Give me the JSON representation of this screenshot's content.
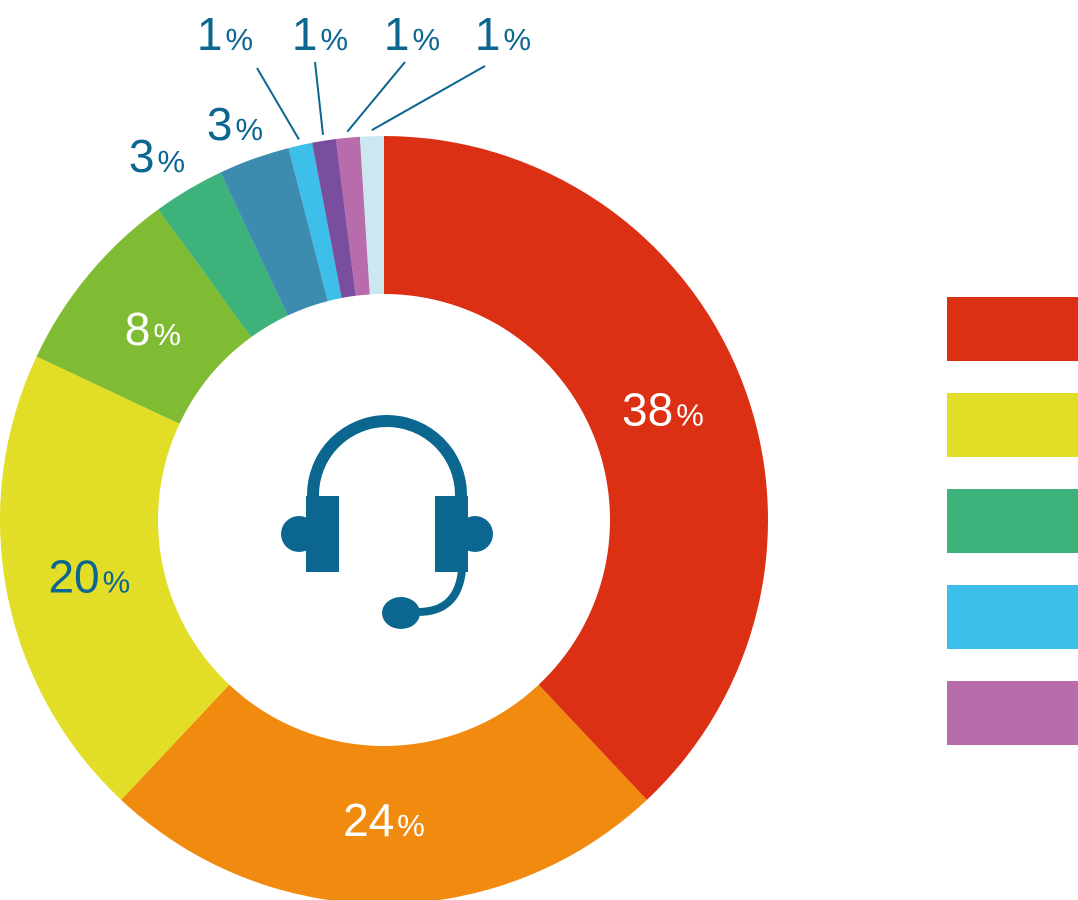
{
  "chart_data": {
    "type": "pie",
    "donut": true,
    "title": "",
    "start_angle_deg": 0,
    "direction": "clockwise",
    "slices": [
      {
        "value": 38,
        "label": "38",
        "suffix": "%",
        "color": "#dc3015",
        "label_color": "#ffffff",
        "label_outside": false
      },
      {
        "value": 24,
        "label": "24",
        "suffix": "%",
        "color": "#f18b0f",
        "label_color": "#ffffff",
        "label_outside": false
      },
      {
        "value": 20,
        "label": "20",
        "suffix": "%",
        "color": "#e2dd26",
        "label_color": "#0b6690",
        "label_outside": false
      },
      {
        "value": 8,
        "label": "8",
        "suffix": "%",
        "color": "#7fbb33",
        "label_color": "#ffffff",
        "label_outside": false
      },
      {
        "value": 3,
        "label": "3",
        "suffix": "%",
        "color": "#3db27a",
        "label_color": "#0b6690",
        "label_outside": true
      },
      {
        "value": 3,
        "label": "3",
        "suffix": "%",
        "color": "#3d8cb0",
        "label_color": "#0b6690",
        "label_outside": true
      },
      {
        "value": 1,
        "label": "1",
        "suffix": "%",
        "color": "#3dbfe9",
        "label_color": "#0b6690",
        "label_outside": true,
        "leader": true
      },
      {
        "value": 1,
        "label": "1",
        "suffix": "%",
        "color": "#7a4e9f",
        "label_color": "#0b6690",
        "label_outside": true,
        "leader": true
      },
      {
        "value": 1,
        "label": "1",
        "suffix": "%",
        "color": "#b86cab",
        "label_color": "#0b6690",
        "label_outside": true,
        "leader": true
      },
      {
        "value": 1,
        "label": "1",
        "suffix": "%",
        "color": "#cbe8f1",
        "label_color": "#0b6690",
        "label_outside": true,
        "leader": true
      }
    ],
    "legend": {
      "placement": "right",
      "swatches": [
        "#dc3015",
        "#e2dd26",
        "#3db27a",
        "#3dbfe9",
        "#b86cab"
      ]
    },
    "center_icon": {
      "name": "headset-icon",
      "color": "#0b6690"
    },
    "leader_color": "#0b6690"
  }
}
